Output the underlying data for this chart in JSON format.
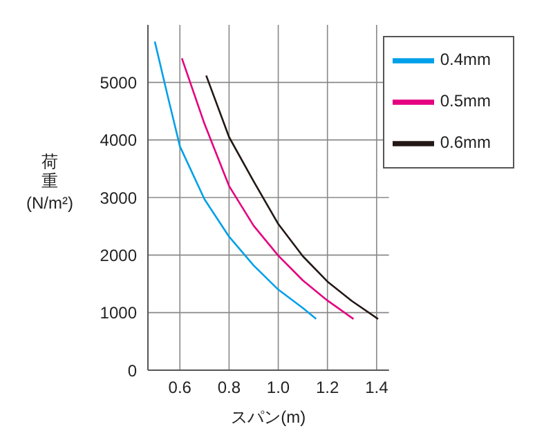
{
  "chart_data": {
    "type": "line",
    "xlabel": "スパン(m)",
    "ylabel": "荷重 (N/m²)",
    "xlim": [
      0.47,
      1.45
    ],
    "xticks": [
      {
        "value": 0.6,
        "label": "0.6"
      },
      {
        "value": 0.8,
        "label": "0.8"
      },
      {
        "value": 1.0,
        "label": "1.0"
      },
      {
        "value": 1.2,
        "label": "1.2"
      },
      {
        "value": 1.4,
        "label": "1.4"
      }
    ],
    "ylim": [
      0,
      6000
    ],
    "yticks": [
      0,
      1000,
      2000,
      3000,
      4000,
      5000
    ],
    "grid": true,
    "legend": "top right",
    "marker": "none",
    "line_style": "solid",
    "series": [
      {
        "name": "0.6mm",
        "color": "#231815",
        "x": [
          0.707,
          0.8,
          0.9,
          1.0,
          1.1,
          1.2,
          1.3,
          1.406
        ],
        "values": [
          5120,
          4050,
          3280,
          2540,
          1980,
          1540,
          1200,
          890
        ]
      },
      {
        "name": "0.5mm",
        "color": "#e4007f",
        "x": [
          0.608,
          0.7,
          0.8,
          0.9,
          1.0,
          1.1,
          1.2,
          1.306
        ],
        "values": [
          5420,
          4280,
          3200,
          2510,
          1990,
          1560,
          1210,
          890
        ]
      },
      {
        "name": "0.4mm",
        "color": "#00a0e9",
        "x": [
          0.498,
          0.55,
          0.6,
          0.7,
          0.8,
          0.9,
          1.0,
          1.1,
          1.154
        ],
        "values": [
          5710,
          4770,
          3890,
          2970,
          2320,
          1820,
          1400,
          1080,
          890
        ]
      }
    ]
  }
}
